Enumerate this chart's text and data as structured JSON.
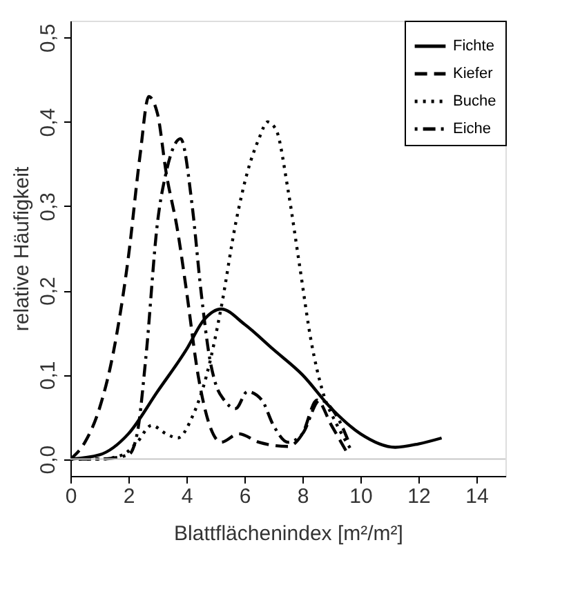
{
  "chart_data": {
    "type": "line",
    "xlabel": "Blattflächenindex [m²/m²]",
    "ylabel": "relative Häufigkeit",
    "xlim": [
      0,
      15
    ],
    "ylim": [
      -0.02,
      0.52
    ],
    "xticks": [
      0,
      2,
      4,
      6,
      8,
      10,
      12,
      14
    ],
    "yticks": [
      {
        "value": 0,
        "label": "0,0"
      },
      {
        "value": 0.1,
        "label": "0,1"
      },
      {
        "value": 0.2,
        "label": "0,2"
      },
      {
        "value": 0.3,
        "label": "0,3"
      },
      {
        "value": 0.4,
        "label": "0,4"
      },
      {
        "value": 0.5,
        "label": "0,5"
      }
    ],
    "grid": false,
    "legend": "top right",
    "ref_lines": [
      {
        "axis": "y",
        "value": 0,
        "color": "#c8c8c8",
        "line_style": "solid"
      }
    ],
    "series": [
      {
        "name": "Fichte",
        "color": "#000000",
        "line_style": "solid",
        "x": [
          0,
          1,
          2,
          3,
          4,
          4.6,
          5.2,
          6,
          7,
          8,
          9,
          10,
          11.2,
          12,
          12.8
        ],
        "values": [
          0,
          0.005,
          0.03,
          0.08,
          0.13,
          0.165,
          0.178,
          0.16,
          0.13,
          0.1,
          0.06,
          0.03,
          0.014,
          0.018,
          0.025
        ]
      },
      {
        "name": "Kiefer",
        "color": "#000000",
        "line_style": "dashed",
        "x": [
          0,
          0.5,
          1,
          1.5,
          2,
          2.4,
          2.7,
          3,
          3.3,
          3.7,
          4,
          4.4,
          4.8,
          5.2,
          5.8,
          6.5,
          7.5,
          8,
          8.5,
          9,
          9.5
        ],
        "values": [
          0,
          0.02,
          0.06,
          0.13,
          0.24,
          0.36,
          0.43,
          0.41,
          0.34,
          0.27,
          0.2,
          0.1,
          0.04,
          0.02,
          0.03,
          0.02,
          0.015,
          0.03,
          0.07,
          0.04,
          0.01
        ]
      },
      {
        "name": "Buche",
        "color": "#000000",
        "line_style": "dotted",
        "x": [
          0,
          1,
          1.8,
          2.3,
          2.8,
          3.3,
          3.7,
          4.2,
          4.7,
          5.2,
          5.7,
          6.1,
          6.5,
          6.8,
          7.1,
          7.5,
          7.9,
          8.3,
          8.7,
          9.2,
          9.7
        ],
        "values": [
          0,
          0,
          0.005,
          0.02,
          0.04,
          0.03,
          0.025,
          0.05,
          0.1,
          0.18,
          0.28,
          0.34,
          0.38,
          0.4,
          0.39,
          0.32,
          0.23,
          0.14,
          0.08,
          0.04,
          0.01
        ]
      },
      {
        "name": "Eiche",
        "color": "#000000",
        "line_style": "dashdot",
        "x": [
          0,
          1,
          2,
          2.3,
          2.6,
          3,
          3.3,
          3.8,
          4.2,
          4.5,
          4.8,
          5,
          5.3,
          5.7,
          6.1,
          6.6,
          7,
          7.5,
          8,
          8.6,
          9.2,
          9.6
        ],
        "values": [
          0,
          0,
          0.005,
          0.03,
          0.12,
          0.28,
          0.34,
          0.38,
          0.3,
          0.2,
          0.12,
          0.09,
          0.07,
          0.06,
          0.08,
          0.07,
          0.04,
          0.02,
          0.03,
          0.07,
          0.05,
          0.02
        ]
      }
    ]
  }
}
